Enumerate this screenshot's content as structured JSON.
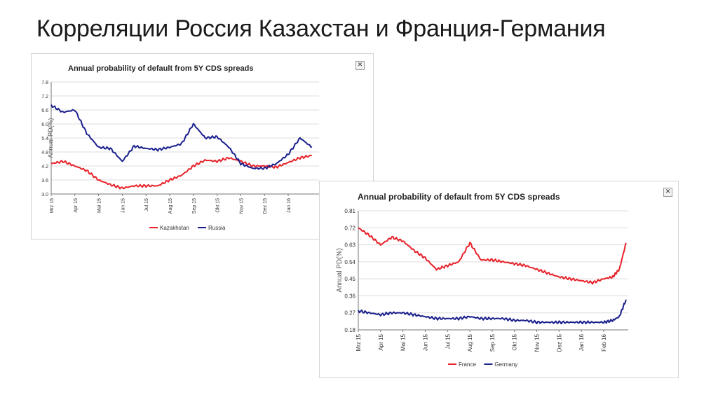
{
  "slide": {
    "title": "Корреляции Россия Казахстан и Франция-Германия"
  },
  "chart_data": [
    {
      "type": "line",
      "title": "Annual probability of default from 5Y CDS spreads",
      "xlabel": "",
      "ylabel": "Annual PD(%)",
      "ylim": [
        3.0,
        7.8
      ],
      "yticks": [
        "7.8",
        "7.2",
        "6.6",
        "6.0",
        "5.4",
        "4.8",
        "4.2",
        "3.6",
        "3.0"
      ],
      "x_tick_labels": [
        "Mrz 15",
        "Apr 15",
        "Mai 15",
        "Jun 15",
        "Jul 15",
        "Aug 15",
        "Sep 15",
        "Okt 15",
        "Nov 15",
        "Dez 15",
        "Jan 16"
      ],
      "x": [
        0,
        0.5,
        1,
        1.5,
        2,
        2.5,
        3,
        3.5,
        4,
        4.5,
        5,
        5.5,
        6,
        6.5,
        7,
        7.5,
        8,
        8.5,
        9,
        9.5,
        10,
        10.5,
        11
      ],
      "legend": "bottom",
      "series": [
        {
          "name": "Kazakhstan",
          "color": "#e8222a",
          "values": [
            4.3,
            4.4,
            4.2,
            4.0,
            3.6,
            3.4,
            3.25,
            3.35,
            3.35,
            3.35,
            3.6,
            3.8,
            4.2,
            4.45,
            4.4,
            4.55,
            4.4,
            4.2,
            4.2,
            4.15,
            4.35,
            4.55,
            4.65
          ]
        },
        {
          "name": "Russia",
          "color": "#1a1f8c",
          "values": [
            6.8,
            6.5,
            6.6,
            5.6,
            5.0,
            4.95,
            4.4,
            5.05,
            4.95,
            4.9,
            5.0,
            5.15,
            6.0,
            5.4,
            5.45,
            5.0,
            4.3,
            4.1,
            4.1,
            4.3,
            4.7,
            5.4,
            5.0
          ]
        }
      ]
    },
    {
      "type": "line",
      "title": "Annual probability of default from 5Y CDS spreads",
      "xlabel": "",
      "ylabel": "Annual PD(%)",
      "ylim": [
        0.18,
        0.81
      ],
      "yticks": [
        "0.81",
        "0.72",
        "0.63",
        "0.54",
        "0.45",
        "0.36",
        "0.27",
        "0.18"
      ],
      "x_tick_labels": [
        "Mrz 15",
        "Apr 15",
        "Mai 15",
        "Jun 15",
        "Jul 15",
        "Aug 15",
        "Sep 15",
        "Okt 15",
        "Nov 15",
        "Dez 15",
        "Jan 16",
        "Feb 16"
      ],
      "x": [
        0,
        0.5,
        1,
        1.5,
        2,
        2.5,
        3,
        3.5,
        4,
        4.5,
        5,
        5.5,
        6,
        6.5,
        7,
        7.5,
        8,
        8.5,
        9,
        9.5,
        10,
        10.5,
        11,
        11.4,
        11.7,
        12
      ],
      "legend": "bottom",
      "series": [
        {
          "name": "France",
          "color": "#e8222a",
          "values": [
            0.72,
            0.68,
            0.63,
            0.67,
            0.65,
            0.6,
            0.56,
            0.5,
            0.52,
            0.54,
            0.64,
            0.55,
            0.55,
            0.54,
            0.53,
            0.52,
            0.5,
            0.48,
            0.46,
            0.45,
            0.44,
            0.43,
            0.45,
            0.46,
            0.5,
            0.64
          ]
        },
        {
          "name": "Germany",
          "color": "#1a1f8c",
          "values": [
            0.28,
            0.27,
            0.26,
            0.27,
            0.27,
            0.26,
            0.25,
            0.24,
            0.24,
            0.24,
            0.25,
            0.24,
            0.24,
            0.24,
            0.23,
            0.23,
            0.22,
            0.22,
            0.22,
            0.22,
            0.22,
            0.22,
            0.22,
            0.23,
            0.25,
            0.34
          ]
        }
      ]
    }
  ]
}
